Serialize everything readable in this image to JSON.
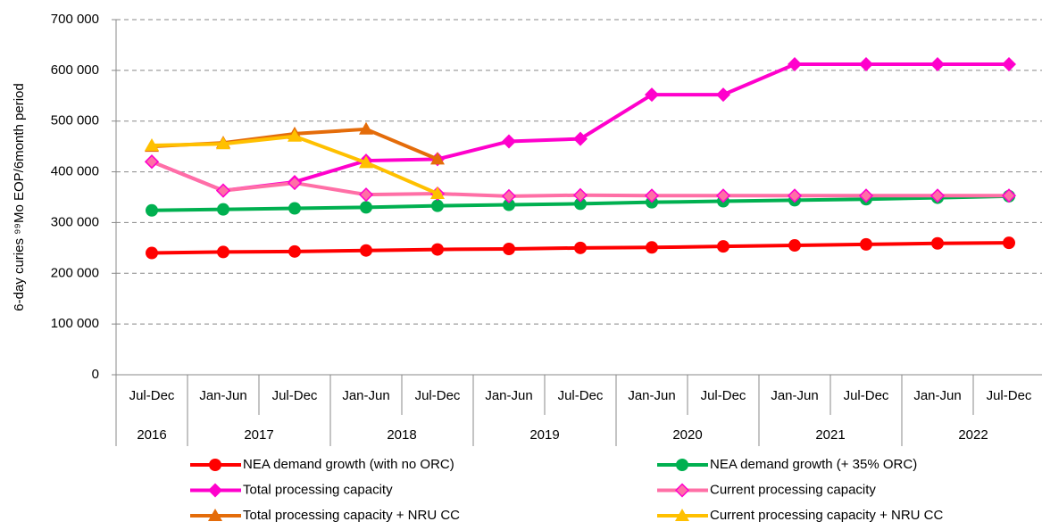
{
  "chart_data": {
    "type": "line",
    "y_label": "6-day curies ⁹⁹Mo  EOP/6month period",
    "categories": [
      "Jul-Dec",
      "Jan-Jun",
      "Jul-Dec",
      "Jan-Jun",
      "Jul-Dec",
      "Jan-Jun",
      "Jul-Dec",
      "Jan-Jun",
      "Jul-Dec",
      "Jan-Jun",
      "Jul-Dec",
      "Jan-Jun",
      "Jul-Dec"
    ],
    "years": [
      "2016",
      "2017",
      null,
      "2018",
      null,
      "2019",
      null,
      "2020",
      null,
      "2021",
      null,
      "2022",
      null
    ],
    "ylim": [
      0,
      700000
    ],
    "yticks": [
      0,
      {
        "value": 100000,
        "label": "100 000"
      },
      {
        "value": 200000,
        "label": "200 000"
      },
      {
        "value": 300000,
        "label": "300 000"
      },
      {
        "value": 400000,
        "label": "400 000"
      },
      {
        "value": 500000,
        "label": "500 000"
      },
      {
        "value": 600000,
        "label": "600 000"
      },
      {
        "value": 700000,
        "label": "700 000"
      }
    ],
    "grid": true,
    "series": [
      {
        "name": "NEA demand growth (with no ORC)",
        "color": "#ff0000",
        "marker": "circle",
        "values": [
          240000,
          242000,
          243000,
          245000,
          247000,
          248000,
          250000,
          251000,
          253000,
          255000,
          257000,
          259000,
          260000
        ]
      },
      {
        "name": "NEA demand growth (+ 35% ORC)",
        "color": "#00b050",
        "marker": "circle",
        "values": [
          324000,
          326000,
          328000,
          330000,
          333000,
          335000,
          337000,
          340000,
          342000,
          344000,
          346000,
          349000,
          352000
        ]
      },
      {
        "name": "Total processing capacity",
        "color": "#ff00cc",
        "marker": "diamond",
        "values": [
          420000,
          363000,
          380000,
          422000,
          425000,
          460000,
          465000,
          552000,
          552000,
          612000,
          612000,
          612000,
          612000
        ]
      },
      {
        "name": "Current processing capacity",
        "color": "#ff6fa6",
        "marker": "diamond-outline",
        "values": [
          420000,
          363000,
          378000,
          355000,
          357000,
          352000,
          354000,
          353000,
          353000,
          353000,
          353000,
          353000,
          353000
        ]
      },
      {
        "name": "Total processing capacity + NRU CC",
        "color": "#e46c0a",
        "marker": "triangle",
        "values": [
          450000,
          457000,
          475000,
          484000,
          425000,
          null,
          null,
          null,
          null,
          null,
          null,
          null,
          null
        ]
      },
      {
        "name": "Current processing capacity + NRU CC",
        "color": "#ffc000",
        "marker": "triangle",
        "values": [
          452000,
          455000,
          470000,
          418000,
          357000,
          null,
          null,
          null,
          null,
          null,
          null,
          null,
          null
        ]
      }
    ]
  }
}
